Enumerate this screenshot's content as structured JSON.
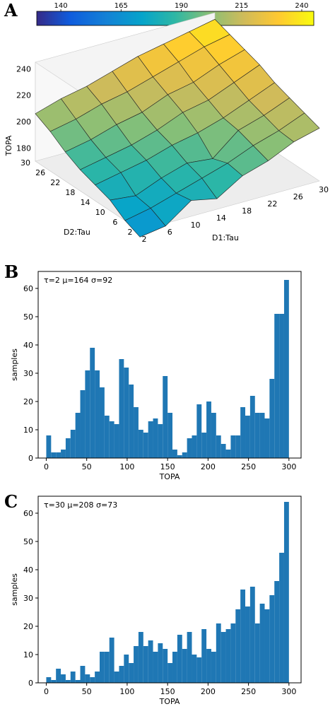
{
  "panels": {
    "a": {
      "label": "A"
    },
    "b": {
      "label": "B"
    },
    "c": {
      "label": "C"
    }
  },
  "colorbar": {
    "ticks": [
      140,
      165,
      190,
      215,
      240
    ],
    "range": [
      130,
      245
    ]
  },
  "surface": {
    "zlabel": "TOPA",
    "xlabel": "D1:Tau",
    "ylabel": "D2:Tau",
    "x_ticks": [
      2,
      6,
      10,
      14,
      18,
      22,
      26,
      30
    ],
    "y_ticks": [
      2,
      6,
      10,
      14,
      18,
      22,
      26,
      30
    ],
    "z_ticks": [
      180,
      200,
      220,
      240
    ]
  },
  "colors": {
    "bar": "#1f77b4"
  },
  "chart_data": [
    {
      "type": "surface",
      "x": [
        2,
        6,
        10,
        14,
        18,
        22,
        26,
        30
      ],
      "y": [
        2,
        6,
        10,
        14,
        18,
        22,
        26,
        30
      ],
      "z": [
        [
          165,
          168,
          182,
          178,
          190,
          196,
          205,
          210
        ],
        [
          170,
          174,
          180,
          186,
          192,
          200,
          206,
          214
        ],
        [
          178,
          176,
          184,
          190,
          188,
          204,
          210,
          218
        ],
        [
          182,
          186,
          190,
          196,
          200,
          206,
          214,
          222
        ],
        [
          186,
          190,
          194,
          200,
          208,
          212,
          220,
          228
        ],
        [
          192,
          196,
          202,
          206,
          214,
          218,
          226,
          232
        ],
        [
          200,
          204,
          210,
          214,
          220,
          226,
          232,
          236
        ],
        [
          206,
          212,
          216,
          222,
          228,
          232,
          236,
          240
        ]
      ],
      "zlabel": "TOPA",
      "xlabel": "D1:Tau",
      "ylabel": "D2:Tau"
    },
    {
      "type": "bar",
      "annotation": "τ=2  μ=164  σ=92",
      "xlabel": "TOPA",
      "ylabel": "samples",
      "xlim": [
        -10,
        315
      ],
      "ylim": [
        0,
        66
      ],
      "x_ticks": [
        0,
        50,
        100,
        150,
        200,
        250,
        300
      ],
      "y_ticks": [
        0,
        10,
        20,
        30,
        40,
        50,
        60
      ],
      "bin_width": 6,
      "x": [
        0,
        6,
        12,
        18,
        24,
        30,
        36,
        42,
        48,
        54,
        60,
        66,
        72,
        78,
        84,
        90,
        96,
        102,
        108,
        114,
        120,
        126,
        132,
        138,
        144,
        150,
        156,
        162,
        168,
        174,
        180,
        186,
        192,
        198,
        204,
        210,
        216,
        222,
        228,
        234,
        240,
        246,
        252,
        258,
        264,
        270,
        276,
        282,
        288,
        294
      ],
      "values": [
        8,
        2,
        2,
        3,
        7,
        10,
        16,
        24,
        31,
        39,
        31,
        25,
        15,
        13,
        12,
        35,
        32,
        26,
        18,
        10,
        9,
        13,
        14,
        12,
        29,
        16,
        3,
        1,
        2,
        7,
        8,
        19,
        9,
        20,
        16,
        8,
        5,
        3,
        8,
        8,
        18,
        15,
        22,
        16,
        16,
        14,
        28,
        51,
        51,
        63
      ]
    },
    {
      "type": "bar",
      "annotation": "τ=30  μ=208  σ=73",
      "xlabel": "TOPA",
      "ylabel": "samples",
      "xlim": [
        -10,
        315
      ],
      "ylim": [
        0,
        66
      ],
      "x_ticks": [
        0,
        50,
        100,
        150,
        200,
        250,
        300
      ],
      "y_ticks": [
        0,
        10,
        20,
        30,
        40,
        50,
        60
      ],
      "bin_width": 6,
      "x": [
        0,
        6,
        12,
        18,
        24,
        30,
        36,
        42,
        48,
        54,
        60,
        66,
        72,
        78,
        84,
        90,
        96,
        102,
        108,
        114,
        120,
        126,
        132,
        138,
        144,
        150,
        156,
        162,
        168,
        174,
        180,
        186,
        192,
        198,
        204,
        210,
        216,
        222,
        228,
        234,
        240,
        246,
        252,
        258,
        264,
        270,
        276,
        282,
        288,
        294
      ],
      "values": [
        2,
        1,
        5,
        3,
        1,
        4,
        1,
        6,
        3,
        2,
        4,
        11,
        11,
        16,
        4,
        6,
        10,
        7,
        13,
        18,
        13,
        15,
        11,
        14,
        12,
        7,
        11,
        17,
        12,
        18,
        10,
        9,
        19,
        12,
        11,
        21,
        18,
        19,
        21,
        26,
        33,
        27,
        34,
        21,
        28,
        26,
        31,
        36,
        46,
        64
      ]
    }
  ]
}
